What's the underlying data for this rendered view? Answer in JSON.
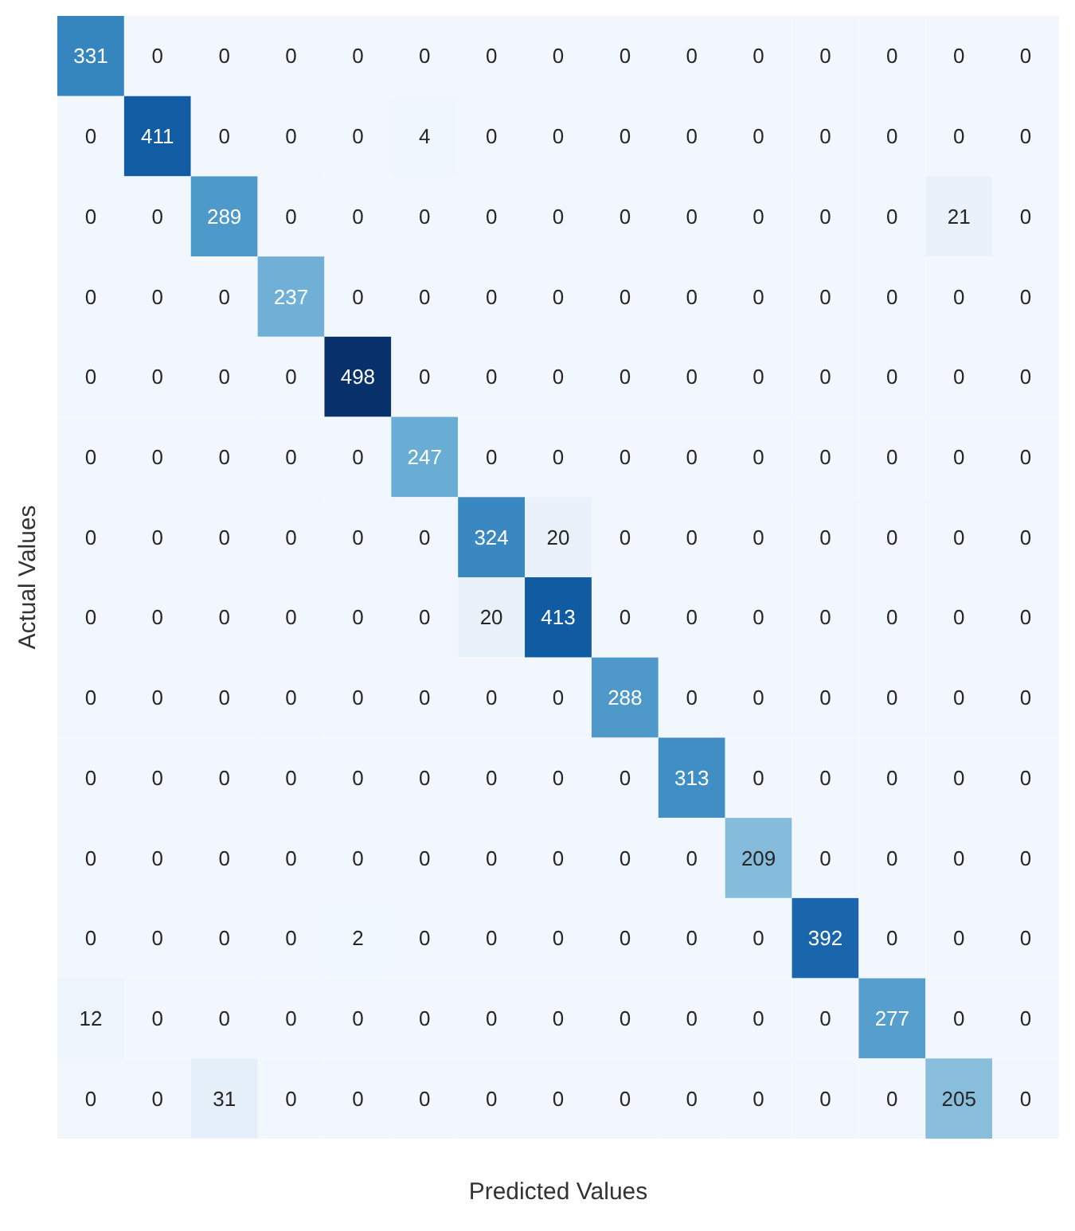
{
  "chart_data": {
    "type": "heatmap",
    "xlabel": "Predicted Values",
    "ylabel": "Actual Values",
    "data_labels": true,
    "categories": [
      null,
      null,
      null,
      null,
      null,
      null,
      null,
      null,
      null,
      null,
      null,
      null,
      null,
      null,
      null
    ],
    "y_categories": [
      null,
      null,
      null,
      null,
      null,
      null,
      null,
      null,
      null,
      null,
      null,
      null,
      null,
      null
    ],
    "cells": [
      [
        331,
        0,
        0,
        0,
        0,
        0,
        0,
        0,
        0,
        0,
        0,
        0,
        0,
        0,
        0
      ],
      [
        0,
        411,
        0,
        0,
        0,
        4,
        0,
        0,
        0,
        0,
        0,
        0,
        0,
        0,
        0
      ],
      [
        0,
        0,
        289,
        0,
        0,
        0,
        0,
        0,
        0,
        0,
        0,
        0,
        0,
        21,
        0
      ],
      [
        0,
        0,
        0,
        237,
        0,
        0,
        0,
        0,
        0,
        0,
        0,
        0,
        0,
        0,
        0
      ],
      [
        0,
        0,
        0,
        0,
        498,
        0,
        0,
        0,
        0,
        0,
        0,
        0,
        0,
        0,
        0
      ],
      [
        0,
        0,
        0,
        0,
        0,
        247,
        0,
        0,
        0,
        0,
        0,
        0,
        0,
        0,
        0
      ],
      [
        0,
        0,
        0,
        0,
        0,
        0,
        324,
        20,
        0,
        0,
        0,
        0,
        0,
        0,
        0
      ],
      [
        0,
        0,
        0,
        0,
        0,
        0,
        20,
        413,
        0,
        0,
        0,
        0,
        0,
        0,
        0
      ],
      [
        0,
        0,
        0,
        0,
        0,
        0,
        0,
        0,
        288,
        0,
        0,
        0,
        0,
        0,
        0
      ],
      [
        0,
        0,
        0,
        0,
        0,
        0,
        0,
        0,
        0,
        313,
        0,
        0,
        0,
        0,
        0
      ],
      [
        0,
        0,
        0,
        0,
        0,
        0,
        0,
        0,
        0,
        0,
        209,
        0,
        0,
        0,
        0
      ],
      [
        0,
        0,
        0,
        0,
        2,
        0,
        0,
        0,
        0,
        0,
        0,
        392,
        0,
        0,
        0
      ],
      [
        12,
        0,
        0,
        0,
        0,
        0,
        0,
        0,
        0,
        0,
        0,
        0,
        277,
        0,
        0
      ],
      [
        0,
        0,
        31,
        0,
        0,
        0,
        0,
        0,
        0,
        0,
        0,
        0,
        0,
        205,
        0
      ]
    ]
  }
}
